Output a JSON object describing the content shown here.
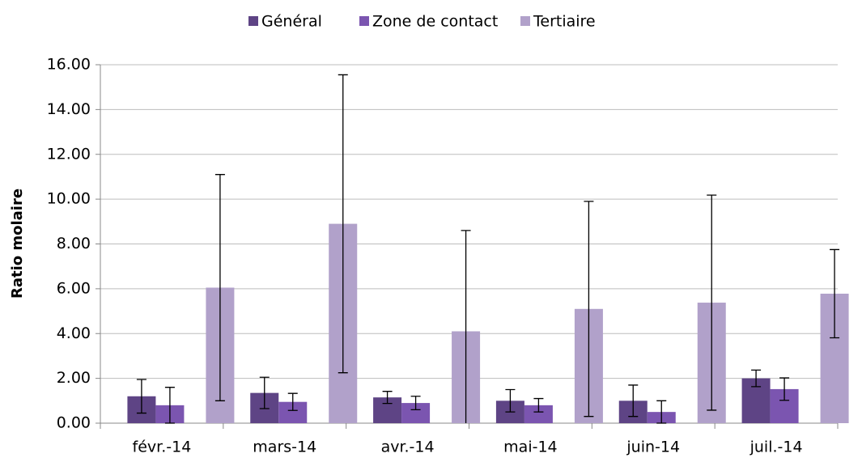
{
  "chart_data": {
    "type": "bar",
    "y_label": "Ratio molaire",
    "categories": [
      "févr.-14",
      "mars-14",
      "avr.-14",
      "mai-14",
      "juin-14",
      "juil.-14"
    ],
    "series": [
      {
        "name": "Général",
        "color": "#5e4485",
        "values": [
          1.2,
          1.35,
          1.15,
          1.0,
          1.0,
          2.0
        ],
        "errors": [
          0.75,
          0.7,
          0.27,
          0.5,
          0.7,
          0.37
        ]
      },
      {
        "name": "Zone de contact",
        "color": "#7b55b0",
        "values": [
          0.8,
          0.95,
          0.9,
          0.8,
          0.5,
          1.52
        ],
        "errors": [
          0.8,
          0.38,
          0.3,
          0.3,
          0.5,
          0.5
        ]
      },
      {
        "name": "Tertiaire",
        "color": "#b1a1ca",
        "values": [
          6.05,
          8.9,
          4.1,
          5.1,
          5.38,
          5.78
        ],
        "errors": [
          5.05,
          6.65,
          4.5,
          4.8,
          4.8,
          1.97
        ]
      }
    ],
    "ylim": [
      0,
      16
    ],
    "yticks": [
      {
        "value": 0,
        "label": "0.00"
      },
      {
        "value": 2,
        "label": "2.00"
      },
      {
        "value": 4,
        "label": "4.00"
      },
      {
        "value": 6,
        "label": "6.00"
      },
      {
        "value": 8,
        "label": "8.00"
      },
      {
        "value": 10,
        "label": "10.00"
      },
      {
        "value": 12,
        "label": "12.00"
      },
      {
        "value": 14,
        "label": "14.00"
      },
      {
        "value": 16,
        "label": "16.00"
      }
    ],
    "grid": true,
    "legend": "top"
  }
}
